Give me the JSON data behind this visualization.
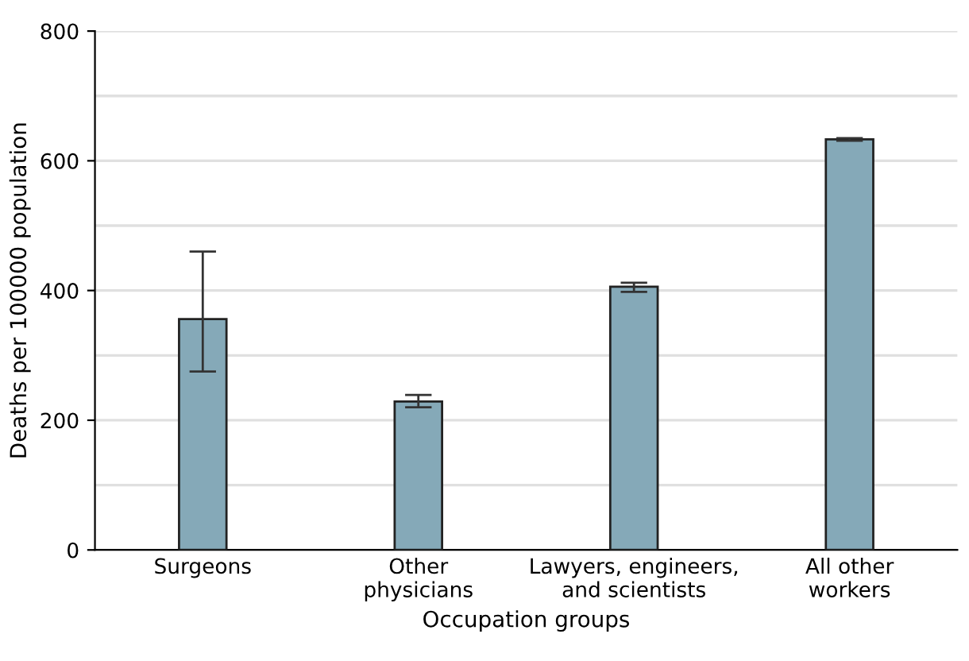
{
  "chart_data": {
    "type": "bar",
    "xlabel": "Occupation groups",
    "ylabel": "Deaths per 100000 population",
    "categories": [
      "Surgeons",
      "Other\nphysicians",
      "Lawyers, engineers,\nand scientists",
      "All other\nworkers"
    ],
    "values": [
      356,
      229,
      406,
      633
    ],
    "errors": [
      [
        275,
        460
      ],
      [
        220,
        239
      ],
      [
        398,
        412
      ],
      [
        631,
        635
      ]
    ],
    "color": "#85a9b8",
    "ylim": [
      0,
      800
    ],
    "yticks": [
      0,
      {
        "value": 100,
        "label": null
      },
      200,
      {
        "value": 300,
        "label": null
      },
      400,
      {
        "value": 500,
        "label": null
      },
      600,
      {
        "value": 700,
        "label": null
      },
      800
    ],
    "grid": "y"
  }
}
